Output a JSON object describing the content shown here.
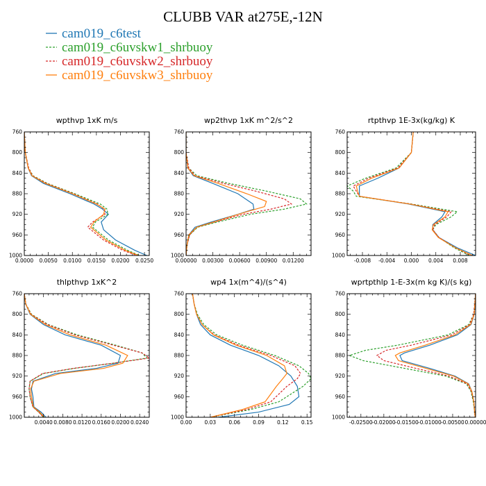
{
  "figure": {
    "title": "CLUBB VAR at275E,-12N",
    "legend": [
      {
        "name": "cam019_c6test",
        "color": "#1f77b4",
        "dash": "solid"
      },
      {
        "name": "cam019_c6uvskw1_shrbuoy",
        "color": "#2ca02c",
        "dash": "dashed"
      },
      {
        "name": "cam019_c6uvskw2_shrbuoy",
        "color": "#d62728",
        "dash": "dashed"
      },
      {
        "name": "cam019_c6uvskw3_shrbuoy",
        "color": "#ff7f0e",
        "dash": "solid"
      }
    ]
  },
  "chart_data": [
    {
      "type": "line",
      "title": "wpthvp  1xK m/s",
      "xlim": [
        0,
        0.026
      ],
      "ylim": [
        760,
        1000
      ],
      "y_inverted": true,
      "xticks": [
        0,
        0.005,
        0.01,
        0.015,
        0.02,
        0.025
      ],
      "xtick_labels": [
        "0.0000",
        "0.0050",
        "0.0100",
        "0.0150",
        "0.0200",
        "0.0250"
      ],
      "yticks": [
        760,
        800,
        840,
        880,
        920,
        960,
        1000
      ],
      "ytick_labels": [
        "760",
        "800",
        "840",
        "880",
        "920",
        "960",
        "1000"
      ],
      "series": [
        {
          "y": [
            760,
            800,
            830,
            845,
            860,
            880,
            900,
            910,
            920,
            935,
            950,
            970,
            990,
            1000
          ],
          "x": [
            0,
            0.0002,
            0.0008,
            0.0015,
            0.004,
            0.0095,
            0.0145,
            0.0163,
            0.0175,
            0.016,
            0.0165,
            0.019,
            0.023,
            0.0255
          ]
        },
        {
          "y": [
            760,
            800,
            830,
            845,
            860,
            880,
            900,
            910,
            920,
            935,
            945,
            970,
            990,
            1000
          ],
          "x": [
            0,
            0.0002,
            0.0009,
            0.0018,
            0.0048,
            0.0105,
            0.0158,
            0.0172,
            0.0174,
            0.0148,
            0.0142,
            0.0175,
            0.0215,
            0.024
          ]
        },
        {
          "y": [
            760,
            800,
            830,
            845,
            860,
            880,
            900,
            910,
            920,
            935,
            945,
            970,
            990,
            1000
          ],
          "x": [
            0,
            0.0002,
            0.0009,
            0.0017,
            0.0046,
            0.0102,
            0.0152,
            0.0166,
            0.0168,
            0.0142,
            0.0132,
            0.0165,
            0.0205,
            0.0235
          ]
        },
        {
          "y": [
            760,
            800,
            830,
            845,
            860,
            880,
            900,
            910,
            920,
            935,
            945,
            970,
            990,
            1000
          ],
          "x": [
            0,
            0.0002,
            0.0008,
            0.0016,
            0.0044,
            0.01,
            0.015,
            0.0168,
            0.0165,
            0.0145,
            0.0138,
            0.017,
            0.021,
            0.0238
          ]
        }
      ]
    },
    {
      "type": "line",
      "title": "wp2thvp  1xK m^2/s^2",
      "xlim": [
        0,
        0.014
      ],
      "ylim": [
        760,
        1000
      ],
      "y_inverted": true,
      "xticks": [
        0,
        0.003,
        0.006,
        0.009,
        0.012
      ],
      "xtick_labels": [
        "0.00000",
        "0.00300",
        "0.00600",
        "0.00900",
        "0.01200"
      ],
      "yticks": [
        760,
        800,
        840,
        880,
        920,
        960,
        1000
      ],
      "ytick_labels": [
        "760",
        "800",
        "840",
        "880",
        "920",
        "960",
        "1000"
      ],
      "series": [
        {
          "y": [
            760,
            800,
            830,
            845,
            860,
            880,
            900,
            910,
            920,
            935,
            945,
            960,
            980,
            1000
          ],
          "x": [
            0,
            0,
            0.0002,
            0.0008,
            0.003,
            0.0058,
            0.0075,
            0.0076,
            0.0058,
            0.0028,
            0.001,
            0.0003,
            0.0001,
            0
          ]
        },
        {
          "y": [
            760,
            800,
            830,
            845,
            860,
            875,
            890,
            900,
            910,
            920,
            935,
            945,
            960,
            980,
            1000
          ],
          "x": [
            0,
            0,
            0.0003,
            0.0012,
            0.0048,
            0.009,
            0.0128,
            0.0135,
            0.011,
            0.0072,
            0.0035,
            0.0013,
            0.0004,
            0.0001,
            0
          ]
        },
        {
          "y": [
            760,
            800,
            830,
            845,
            860,
            875,
            890,
            900,
            910,
            920,
            935,
            945,
            960,
            980,
            1000
          ],
          "x": [
            0,
            0,
            0.0003,
            0.001,
            0.0042,
            0.0078,
            0.011,
            0.0118,
            0.0095,
            0.0064,
            0.0032,
            0.0012,
            0.0004,
            0.0001,
            0
          ]
        },
        {
          "y": [
            760,
            800,
            830,
            845,
            860,
            880,
            895,
            905,
            915,
            930,
            945,
            960,
            980,
            1000
          ],
          "x": [
            0,
            0,
            0.0002,
            0.0009,
            0.0036,
            0.0068,
            0.009,
            0.0088,
            0.0068,
            0.004,
            0.0012,
            0.0003,
            0.0001,
            0
          ]
        }
      ]
    },
    {
      "type": "line",
      "title": "rtpthvp  1E-3x(kg/kg) K",
      "xlim": [
        -0.0105,
        0.0105
      ],
      "ylim": [
        760,
        1000
      ],
      "y_inverted": true,
      "xticks": [
        -0.008,
        -0.004,
        0,
        0.004,
        0.008
      ],
      "xtick_labels": [
        "-0.008",
        "-0.004",
        "0.000",
        "0.004",
        "0.008"
      ],
      "yticks": [
        760,
        800,
        840,
        880,
        920,
        960,
        1000
      ],
      "ytick_labels": [
        "760",
        "800",
        "840",
        "880",
        "920",
        "960",
        "1000"
      ],
      "series": [
        {
          "y": [
            760,
            800,
            830,
            850,
            865,
            875,
            885,
            900,
            915,
            925,
            940,
            950,
            965,
            985,
            1000
          ],
          "x": [
            0.0003,
            0,
            -0.002,
            -0.0055,
            -0.0085,
            -0.0085,
            -0.0085,
            -0.0005,
            0.0055,
            0.005,
            0.0035,
            0.0035,
            0.0045,
            0.0075,
            0.0105
          ]
        },
        {
          "y": [
            760,
            800,
            830,
            850,
            865,
            875,
            885,
            900,
            915,
            925,
            940,
            950,
            965,
            985,
            1000
          ],
          "x": [
            0.0003,
            0,
            -0.0025,
            -0.0075,
            -0.0105,
            -0.0095,
            -0.009,
            0,
            0.0075,
            0.0065,
            0.004,
            0.0035,
            0.0045,
            0.007,
            0.0095
          ]
        },
        {
          "y": [
            760,
            800,
            830,
            850,
            865,
            875,
            885,
            900,
            915,
            925,
            940,
            950,
            965,
            985,
            1000
          ],
          "x": [
            0.0003,
            0,
            -0.0022,
            -0.007,
            -0.0095,
            -0.009,
            -0.0085,
            -0.0002,
            0.0065,
            0.0058,
            0.0038,
            0.0035,
            0.0045,
            0.0072,
            0.0098
          ]
        },
        {
          "y": [
            760,
            800,
            830,
            850,
            865,
            875,
            885,
            900,
            915,
            925,
            940,
            950,
            965,
            985,
            1000
          ],
          "x": [
            0.0003,
            0,
            -0.002,
            -0.0065,
            -0.009,
            -0.0088,
            -0.0085,
            -0.0003,
            0.006,
            0.0055,
            0.0036,
            0.0034,
            0.0044,
            0.0072,
            0.01
          ]
        }
      ]
    },
    {
      "type": "line",
      "title": "thlpthvp  1xK^2",
      "xlim": [
        0,
        0.026
      ],
      "ylim": [
        760,
        1000
      ],
      "y_inverted": true,
      "xticks": [
        0.004,
        0.008,
        0.012,
        0.016,
        0.02,
        0.024
      ],
      "xtick_labels": [
        "0.0040",
        "0.0080",
        "0.0120",
        "0.0160",
        "0.0200",
        "0.0240"
      ],
      "yticks": [
        760,
        800,
        840,
        880,
        920,
        960,
        1000
      ],
      "ytick_labels": [
        "760",
        "800",
        "840",
        "880",
        "920",
        "960",
        "1000"
      ],
      "series": [
        {
          "y": [
            760,
            780,
            800,
            820,
            840,
            860,
            880,
            895,
            905,
            915,
            930,
            945,
            960,
            980,
            990,
            1000
          ],
          "x": [
            0,
            0.0003,
            0.0012,
            0.004,
            0.0085,
            0.016,
            0.02,
            0.0195,
            0.015,
            0.0065,
            0.0018,
            0.0015,
            0.0018,
            0.002,
            0.0035,
            0.0045
          ]
        },
        {
          "y": [
            760,
            780,
            800,
            820,
            840,
            860,
            875,
            885,
            895,
            905,
            915,
            930,
            945,
            960,
            980,
            990,
            1000
          ],
          "x": [
            0,
            0.0003,
            0.0015,
            0.005,
            0.011,
            0.019,
            0.0245,
            0.0255,
            0.0185,
            0.0105,
            0.004,
            0.0012,
            0.001,
            0.0012,
            0.0018,
            0.003,
            0.004
          ]
        },
        {
          "y": [
            760,
            780,
            800,
            820,
            840,
            860,
            875,
            885,
            895,
            905,
            915,
            930,
            945,
            960,
            980,
            990,
            1000
          ],
          "x": [
            0,
            0.0003,
            0.0014,
            0.0048,
            0.0105,
            0.0185,
            0.0245,
            0.026,
            0.0185,
            0.0102,
            0.0038,
            0.0012,
            0.001,
            0.0012,
            0.0018,
            0.003,
            0.004
          ]
        },
        {
          "y": [
            760,
            780,
            800,
            820,
            840,
            860,
            880,
            895,
            905,
            915,
            930,
            945,
            960,
            980,
            990,
            1000
          ],
          "x": [
            0,
            0.0003,
            0.0013,
            0.0044,
            0.0095,
            0.017,
            0.0215,
            0.0205,
            0.0165,
            0.0075,
            0.002,
            0.0013,
            0.0015,
            0.0019,
            0.0032,
            0.0042
          ]
        }
      ]
    },
    {
      "type": "line",
      "title": "wp4  1x(m^4)/(s^4)",
      "xlim": [
        0,
        0.155
      ],
      "ylim": [
        760,
        1000
      ],
      "y_inverted": true,
      "xticks": [
        0,
        0.03,
        0.06,
        0.09,
        0.12,
        0.15
      ],
      "xtick_labels": [
        "0.00",
        "0.03",
        "0.06",
        "0.09",
        "0.12",
        "0.15"
      ],
      "yticks": [
        760,
        800,
        840,
        880,
        920,
        960,
        1000
      ],
      "ytick_labels": [
        "760",
        "800",
        "840",
        "880",
        "920",
        "960",
        "1000"
      ],
      "series": [
        {
          "y": [
            760,
            780,
            800,
            820,
            840,
            860,
            880,
            900,
            920,
            940,
            960,
            975,
            990,
            1000
          ],
          "x": [
            0.008,
            0.01,
            0.013,
            0.018,
            0.03,
            0.055,
            0.09,
            0.115,
            0.13,
            0.138,
            0.14,
            0.128,
            0.09,
            0.04
          ]
        },
        {
          "y": [
            760,
            780,
            800,
            820,
            840,
            860,
            880,
            900,
            915,
            925,
            940,
            955,
            970,
            985,
            1000
          ],
          "x": [
            0.008,
            0.01,
            0.014,
            0.022,
            0.038,
            0.07,
            0.11,
            0.14,
            0.152,
            0.155,
            0.145,
            0.13,
            0.115,
            0.08,
            0.03
          ]
        },
        {
          "y": [
            760,
            780,
            800,
            820,
            840,
            860,
            880,
            900,
            915,
            925,
            940,
            955,
            970,
            985,
            1000
          ],
          "x": [
            0.008,
            0.01,
            0.013,
            0.02,
            0.035,
            0.065,
            0.105,
            0.135,
            0.142,
            0.138,
            0.125,
            0.115,
            0.105,
            0.075,
            0.03
          ]
        },
        {
          "y": [
            760,
            780,
            800,
            820,
            840,
            860,
            880,
            900,
            915,
            925,
            940,
            955,
            970,
            985,
            1000
          ],
          "x": [
            0.008,
            0.01,
            0.013,
            0.02,
            0.034,
            0.062,
            0.1,
            0.122,
            0.125,
            0.12,
            0.112,
            0.105,
            0.098,
            0.07,
            0.03
          ]
        }
      ]
    },
    {
      "type": "line",
      "title": "wprtpthlp  1-E-3x(m kg K)/(s kg)",
      "xlim": [
        -0.028,
        0
      ],
      "ylim": [
        760,
        1000
      ],
      "y_inverted": true,
      "xticks": [
        -0.025,
        -0.02,
        -0.015,
        -0.01,
        -0.005,
        0
      ],
      "xtick_labels": [
        "-0.02500",
        "-0.02000",
        "-0.01500",
        "-0.01000",
        "-0.00500",
        "0.00000"
      ],
      "yticks": [
        760,
        800,
        840,
        880,
        920,
        960,
        1000
      ],
      "ytick_labels": [
        "760",
        "800",
        "840",
        "880",
        "920",
        "960",
        "1000"
      ],
      "series": [
        {
          "y": [
            760,
            800,
            820,
            840,
            860,
            875,
            880,
            890,
            905,
            920,
            935,
            950,
            970,
            990,
            1000
          ],
          "x": [
            0,
            -0.0003,
            -0.001,
            -0.004,
            -0.01,
            -0.0155,
            -0.0165,
            -0.016,
            -0.01,
            -0.0045,
            -0.0015,
            -0.0008,
            -0.0004,
            -0.0002,
            -0.0001
          ]
        },
        {
          "y": [
            760,
            800,
            820,
            840,
            860,
            870,
            880,
            890,
            905,
            920,
            935,
            950,
            970,
            990,
            1000
          ],
          "x": [
            0,
            -0.0004,
            -0.0015,
            -0.006,
            -0.017,
            -0.024,
            -0.0275,
            -0.0245,
            -0.0155,
            -0.0065,
            -0.002,
            -0.001,
            -0.0005,
            -0.0002,
            -0.0001
          ]
        },
        {
          "y": [
            760,
            800,
            820,
            840,
            860,
            870,
            880,
            890,
            905,
            920,
            935,
            950,
            970,
            990,
            1000
          ],
          "x": [
            0,
            -0.0004,
            -0.0013,
            -0.0052,
            -0.014,
            -0.0195,
            -0.0215,
            -0.02,
            -0.013,
            -0.0058,
            -0.0018,
            -0.0009,
            -0.0004,
            -0.0002,
            -0.0001
          ]
        },
        {
          "y": [
            760,
            800,
            820,
            840,
            860,
            875,
            880,
            890,
            905,
            920,
            935,
            950,
            970,
            990,
            1000
          ],
          "x": [
            0,
            -0.0003,
            -0.0011,
            -0.0045,
            -0.011,
            -0.0165,
            -0.0175,
            -0.0168,
            -0.0108,
            -0.0048,
            -0.0016,
            -0.0008,
            -0.0004,
            -0.0002,
            -0.0001
          ]
        }
      ]
    }
  ]
}
